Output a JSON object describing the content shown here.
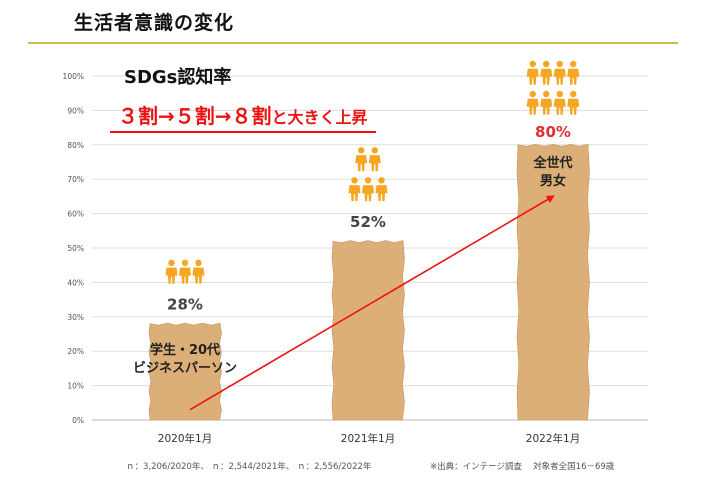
{
  "page_title": "生活者意識の変化",
  "headline": {
    "part1": "３割→５割→８割",
    "part2": "と大きく上昇"
  },
  "footnotes": {
    "sample_sizes": "ｎ：3,206/2020年、 ｎ：2,544/2021年、 ｎ：2,556/2022年",
    "source": "※出典：インテージ調査　 対象者全国16－69歳"
  },
  "colors": {
    "bar": "#dcae78",
    "bar_edge": "#c8945e",
    "person": "#f5a623",
    "accent": "#ee1111",
    "rule": "#c9bf4a",
    "last_value": "#e03030"
  },
  "chart_data": {
    "type": "bar",
    "title": "SDGs認知率",
    "categories": [
      "2020年1月",
      "2021年1月",
      "2022年1月"
    ],
    "values": [
      28,
      52,
      80
    ],
    "value_labels": [
      "28%",
      "52%",
      "80%"
    ],
    "ylim": [
      0,
      100
    ],
    "y_ticks": [
      "0%",
      "10%",
      "20%",
      "30%",
      "40%",
      "50%",
      "60%",
      "70%",
      "80%",
      "90%",
      "100%"
    ],
    "xlabel": "",
    "ylabel": "",
    "grid": true,
    "bar_annotations": [
      {
        "line1": "学生・20代",
        "line2": "ビジネスパーソン"
      },
      {
        "line1": "",
        "line2": ""
      },
      {
        "line1": "全世代",
        "line2": "男女"
      }
    ],
    "person_icons": [
      3,
      5,
      8
    ],
    "trend_arrow": {
      "from_category": "2020年1月",
      "to_category": "2022年1月",
      "from_value": 3,
      "to_value": 65
    }
  }
}
